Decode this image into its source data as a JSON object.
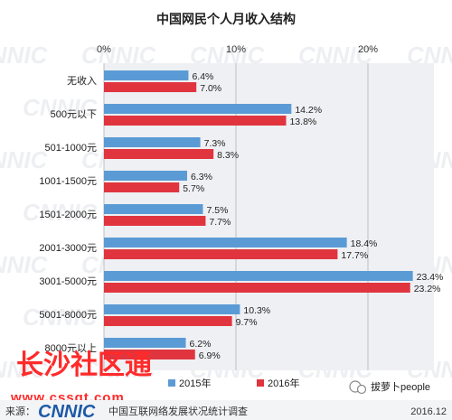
{
  "chart_data": {
    "type": "bar",
    "orientation": "horizontal",
    "title": "中国网民个人月收入结构",
    "categories": [
      "无收入",
      "500元以下",
      "501-1000元",
      "1001-1500元",
      "1501-2000元",
      "2001-3000元",
      "3001-5000元",
      "5001-8000元",
      "8000元以上"
    ],
    "series": [
      {
        "name": "2015年",
        "color": "#5b9bd5",
        "values": [
          6.4,
          14.2,
          7.3,
          6.3,
          7.5,
          18.4,
          23.4,
          10.3,
          6.2
        ]
      },
      {
        "name": "2016年",
        "color": "#e0353f",
        "values": [
          7.0,
          13.8,
          8.3,
          5.7,
          7.7,
          17.7,
          23.2,
          9.7,
          6.9
        ]
      }
    ],
    "value_labels": [
      [
        "6.4%",
        "14.2%",
        "7.3%",
        "6.3%",
        "7.5%",
        "18.4%",
        "23.4%",
        "10.3%",
        "6.2%"
      ],
      [
        "7.0%",
        "13.8%",
        "8.3%",
        "5.7%",
        "7.7%",
        "17.7%",
        "23.2%",
        "9.7%",
        "6.9%"
      ]
    ],
    "xaxis_ticks": [
      "0%",
      "10%",
      "20%"
    ],
    "xaxis_tick_values": [
      0,
      10,
      20
    ],
    "xlim": [
      0,
      25
    ],
    "axis_position": "top",
    "grid": true,
    "legend_position": "bottom"
  },
  "footer": {
    "source_label": "来源：",
    "logo_text": "CNNIC",
    "org_text": "中国互联网络发展状况统计调查",
    "date": "2016.12"
  },
  "watermark": {
    "text": "CNNIC"
  },
  "stamp": {
    "text": "长沙社区通",
    "url": "www.cssqt.com"
  },
  "social_tag": {
    "text": "拔萝卜people"
  }
}
